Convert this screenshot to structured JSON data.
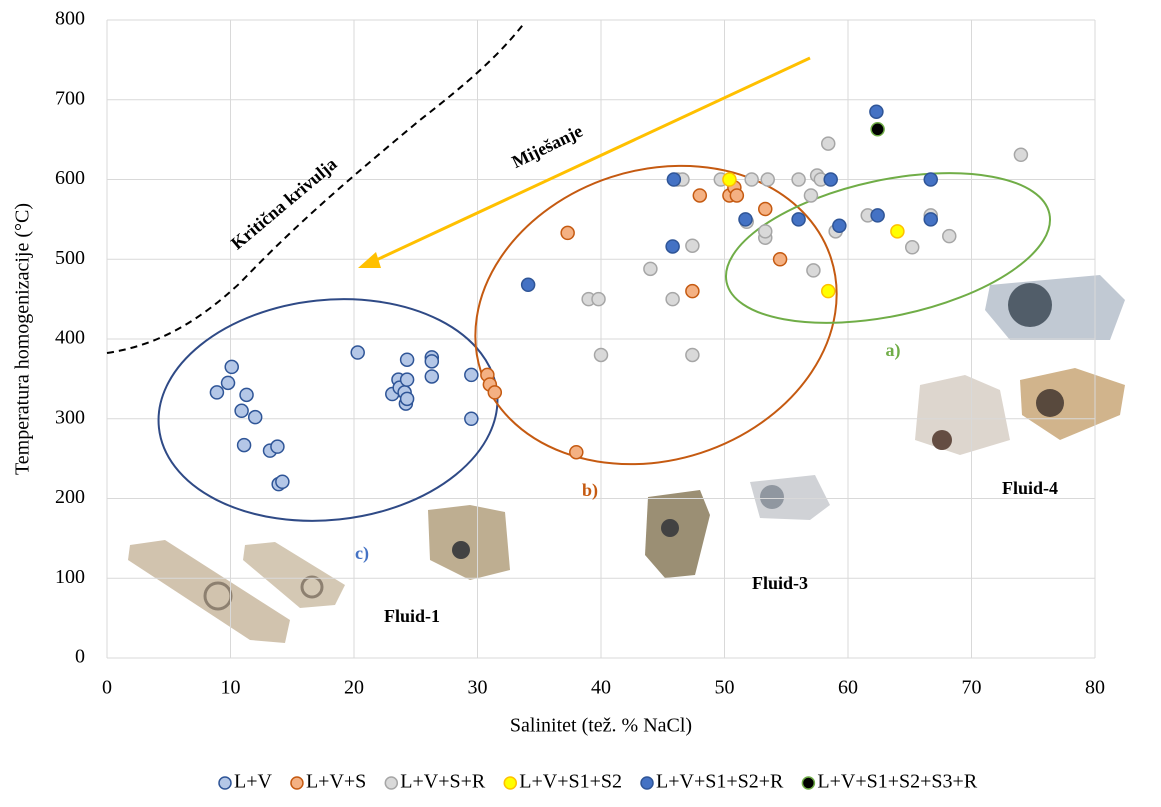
{
  "chart_data": {
    "type": "scatter",
    "x_label": "Salinitet (tež. % NaCl)",
    "y_label": "Temperatura homogenizacije (°C)",
    "xlim": [
      0,
      80
    ],
    "xticks": [
      0,
      10,
      20,
      30,
      40,
      50,
      60,
      70,
      80
    ],
    "ylim": [
      0,
      800
    ],
    "yticks": [
      0,
      100,
      200,
      300,
      400,
      500,
      600,
      700,
      800
    ],
    "grid": true,
    "legend": "bottom",
    "annotations": [
      "Kritična krivulja",
      "Miješanje",
      "a)",
      "b)",
      "c)",
      "Fluid-1",
      "Fluid-3",
      "Fluid-4"
    ],
    "series": [
      {
        "name": "L+V",
        "color": "#b4c7e7",
        "edgecolor": "#2f5597",
        "x": [
          8.9,
          9.8,
          10.1,
          10.9,
          11.1,
          11.3,
          12.0,
          13.2,
          13.8,
          13.9,
          14.2,
          20.3,
          23.1,
          23.6,
          23.7,
          24.1,
          24.2,
          24.3,
          24.3,
          24.3,
          26.3,
          26.3,
          26.3,
          29.5,
          29.5
        ],
        "values": [
          333,
          345,
          365,
          310,
          267,
          330,
          302,
          260,
          265,
          218,
          221,
          383,
          331,
          349,
          339,
          333,
          319,
          349,
          325,
          374,
          377,
          372,
          353,
          355,
          300
        ]
      },
      {
        "name": "L+V+S",
        "color": "#f4b183",
        "edgecolor": "#c55a11",
        "x": [
          30.8,
          31.0,
          31.4,
          38.0,
          37.3,
          47.4,
          48.0,
          50.4,
          50.8,
          51.0,
          53.3,
          54.5
        ],
        "values": [
          355,
          343,
          333,
          258,
          533,
          460,
          580,
          580,
          590,
          580,
          563,
          500
        ]
      },
      {
        "name": "L+V+S+R",
        "color": "#d9d9d9",
        "edgecolor": "#a6a6a6",
        "x": [
          39.0,
          39.8,
          40.0,
          44.0,
          45.8,
          46.2,
          46.6,
          47.4,
          47.4,
          49.7,
          51.8,
          52.2,
          53.3,
          53.3,
          53.5,
          56.0,
          57.0,
          57.2,
          57.5,
          57.8,
          58.4,
          59.0,
          61.6,
          65.2,
          66.7,
          68.2,
          74.0
        ],
        "values": [
          450,
          450,
          380,
          488,
          450,
          600,
          600,
          517,
          380,
          600,
          547,
          600,
          527,
          535,
          600,
          600,
          580,
          486,
          605,
          600,
          645,
          535,
          555,
          515,
          555,
          529,
          631
        ]
      },
      {
        "name": "L+V+S1+S2",
        "color": "#ffff00",
        "edgecolor": "#ffc000",
        "x": [
          50.4,
          58.4,
          64.0
        ],
        "values": [
          600,
          460,
          535
        ]
      },
      {
        "name": "L+V+S1+S2+R",
        "color": "#4472c4",
        "edgecolor": "#2f5597",
        "x": [
          34.1,
          45.8,
          45.9,
          51.7,
          56.0,
          58.6,
          59.3,
          62.3,
          62.4,
          66.7,
          66.7
        ],
        "values": [
          468,
          516,
          600,
          550,
          550,
          600,
          542,
          685,
          555,
          600,
          550
        ]
      },
      {
        "name": "L+V+S1+S2+S3+R",
        "color": "#000000",
        "edgecolor": "#70ad47",
        "x": [
          62.4
        ],
        "values": [
          663
        ]
      }
    ]
  }
}
